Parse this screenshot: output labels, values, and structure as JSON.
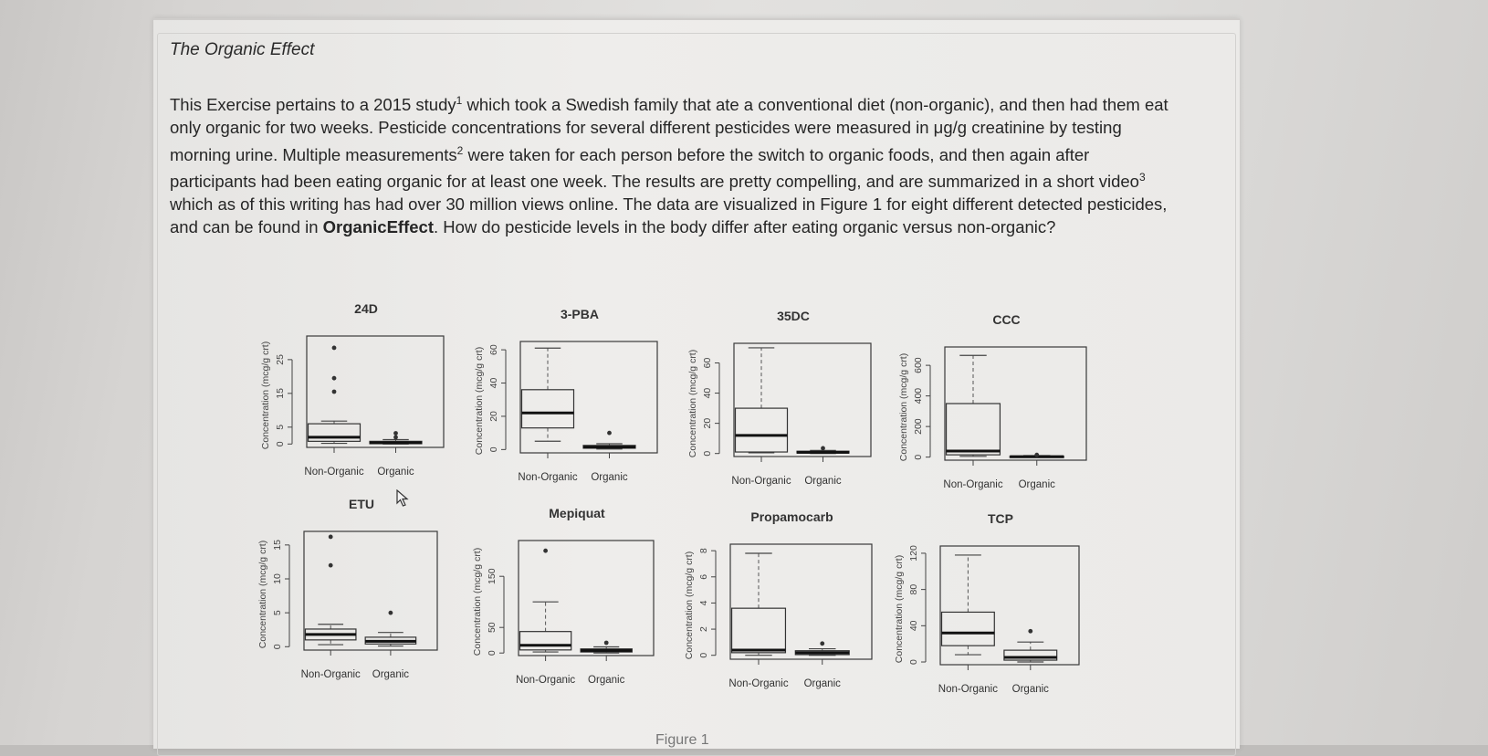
{
  "document": {
    "title": "The Organic Effect",
    "paragraph_lines": [
      [
        "This Exercise pertains to a 2015 study",
        "1",
        " which took a Swedish family that ate a conventional diet (non-organic), and then had them eat"
      ],
      [
        "only organic for two weeks. Pesticide concentrations for several different pesticides were measured in μg/g creatinine by testing"
      ],
      [
        "morning urine. Multiple measurements",
        "2",
        " were taken for each person before the switch to organic foods, and then again after"
      ],
      [
        "participants had been eating organic for at least one week. The results are pretty compelling, and are summarized in a short video",
        "3"
      ],
      [
        "which as of this writing has had over 30 million views online. The data are visualized in Figure 1 for eight different detected pesticides,"
      ],
      [
        "and can be found in ",
        "OrganicEffect",
        ". How do pesticide levels in the body differ after eating organic versus non-organic?"
      ]
    ],
    "figure_caption": "Figure 1"
  },
  "chart_data": [
    {
      "type": "box",
      "title": "24D",
      "ylabel": "Concentration (mcg/g crt)",
      "categories": [
        "Non-Organic",
        "Organic"
      ],
      "yticks": [
        0,
        5,
        15,
        25
      ],
      "ylim": [
        -1,
        32
      ],
      "boxes": [
        {
          "name": "Non-Organic",
          "whisker_low": 0.2,
          "q1": 0.8,
          "median": 2.0,
          "q3": 6.0,
          "whisker_high": 6.8,
          "outliers": [
            15.5,
            19.5,
            28.5
          ]
        },
        {
          "name": "Organic",
          "whisker_low": 0.0,
          "q1": 0.1,
          "median": 0.4,
          "q3": 0.8,
          "whisker_high": 1.3,
          "outliers": [
            2.0,
            3.2
          ]
        }
      ]
    },
    {
      "type": "box",
      "title": "3-PBA",
      "ylabel": "Concentration (mcg/g crt)",
      "categories": [
        "Non-Organic",
        "Organic"
      ],
      "yticks": [
        0,
        20,
        40,
        60
      ],
      "ylim": [
        -2,
        65
      ],
      "boxes": [
        {
          "name": "Non-Organic",
          "whisker_low": 5,
          "q1": 13,
          "median": 22,
          "q3": 36,
          "whisker_high": 61,
          "outliers": []
        },
        {
          "name": "Organic",
          "whisker_low": 0.3,
          "q1": 0.8,
          "median": 1.5,
          "q3": 2.5,
          "whisker_high": 3.5,
          "outliers": [
            10
          ]
        }
      ]
    },
    {
      "type": "box",
      "title": "35DC",
      "ylabel": "Concentration (mcg/g crt)",
      "categories": [
        "Non-Organic",
        "Organic"
      ],
      "yticks": [
        0,
        20,
        40,
        60
      ],
      "ylim": [
        -2,
        73
      ],
      "boxes": [
        {
          "name": "Non-Organic",
          "whisker_low": 0.5,
          "q1": 1,
          "median": 12,
          "q3": 30,
          "whisker_high": 70,
          "outliers": []
        },
        {
          "name": "Organic",
          "whisker_low": 0,
          "q1": 0.3,
          "median": 0.8,
          "q3": 1.5,
          "whisker_high": 2,
          "outliers": [
            3.5
          ]
        }
      ]
    },
    {
      "type": "box",
      "title": "CCC",
      "ylabel": "Concentration (mcg/g crt)",
      "categories": [
        "Non-Organic",
        "Organic"
      ],
      "yticks": [
        0,
        200,
        400,
        600
      ],
      "ylim": [
        -20,
        720
      ],
      "boxes": [
        {
          "name": "Non-Organic",
          "whisker_low": 5,
          "q1": 15,
          "median": 40,
          "q3": 350,
          "whisker_high": 665,
          "outliers": []
        },
        {
          "name": "Organic",
          "whisker_low": 0,
          "q1": 1,
          "median": 3,
          "q3": 6,
          "whisker_high": 10,
          "outliers": [
            15
          ]
        }
      ]
    },
    {
      "type": "box",
      "title": "ETU",
      "ylabel": "Concentration (mcg/g crt)",
      "categories": [
        "Non-Organic",
        "Organic"
      ],
      "yticks": [
        0,
        5,
        10,
        15
      ],
      "ylim": [
        -0.5,
        17
      ],
      "boxes": [
        {
          "name": "Non-Organic",
          "whisker_low": 0.3,
          "q1": 1.0,
          "median": 1.8,
          "q3": 2.6,
          "whisker_high": 3.3,
          "outliers": [
            12,
            16.2
          ]
        },
        {
          "name": "Organic",
          "whisker_low": 0.1,
          "q1": 0.4,
          "median": 0.8,
          "q3": 1.4,
          "whisker_high": 2.1,
          "outliers": [
            5
          ]
        }
      ]
    },
    {
      "type": "box",
      "title": "Mepiquat",
      "ylabel": "Concentration (mcg/g crt)",
      "categories": [
        "Non-Organic",
        "Organic"
      ],
      "yticks": [
        0,
        50,
        150
      ],
      "ylim": [
        -5,
        220
      ],
      "boxes": [
        {
          "name": "Non-Organic",
          "whisker_low": 2,
          "q1": 6,
          "median": 15,
          "q3": 42,
          "whisker_high": 100,
          "outliers": [
            200
          ]
        },
        {
          "name": "Organic",
          "whisker_low": 0,
          "q1": 2,
          "median": 5,
          "q3": 8,
          "whisker_high": 12,
          "outliers": [
            20
          ]
        }
      ]
    },
    {
      "type": "box",
      "title": "Propamocarb",
      "ylabel": "Concentration (mcg/g crt)",
      "categories": [
        "Non-Organic",
        "Organic"
      ],
      "yticks": [
        0,
        2,
        4,
        6,
        8
      ],
      "ylim": [
        -0.3,
        8.5
      ],
      "boxes": [
        {
          "name": "Non-Organic",
          "whisker_low": 0,
          "q1": 0.2,
          "median": 0.4,
          "q3": 3.6,
          "whisker_high": 7.8,
          "outliers": []
        },
        {
          "name": "Organic",
          "whisker_low": 0,
          "q1": 0.05,
          "median": 0.2,
          "q3": 0.35,
          "whisker_high": 0.5,
          "outliers": [
            0.9
          ]
        }
      ]
    },
    {
      "type": "box",
      "title": "TCP",
      "ylabel": "Concentration (mcg/g crt)",
      "categories": [
        "Non-Organic",
        "Organic"
      ],
      "yticks": [
        0,
        40,
        80,
        120
      ],
      "ylim": [
        -3,
        128
      ],
      "boxes": [
        {
          "name": "Non-Organic",
          "whisker_low": 8,
          "q1": 18,
          "median": 32,
          "q3": 55,
          "whisker_high": 118,
          "outliers": []
        },
        {
          "name": "Organic",
          "whisker_low": 0,
          "q1": 2,
          "median": 5,
          "q3": 13,
          "whisker_high": 22,
          "outliers": [
            34
          ]
        }
      ]
    }
  ]
}
